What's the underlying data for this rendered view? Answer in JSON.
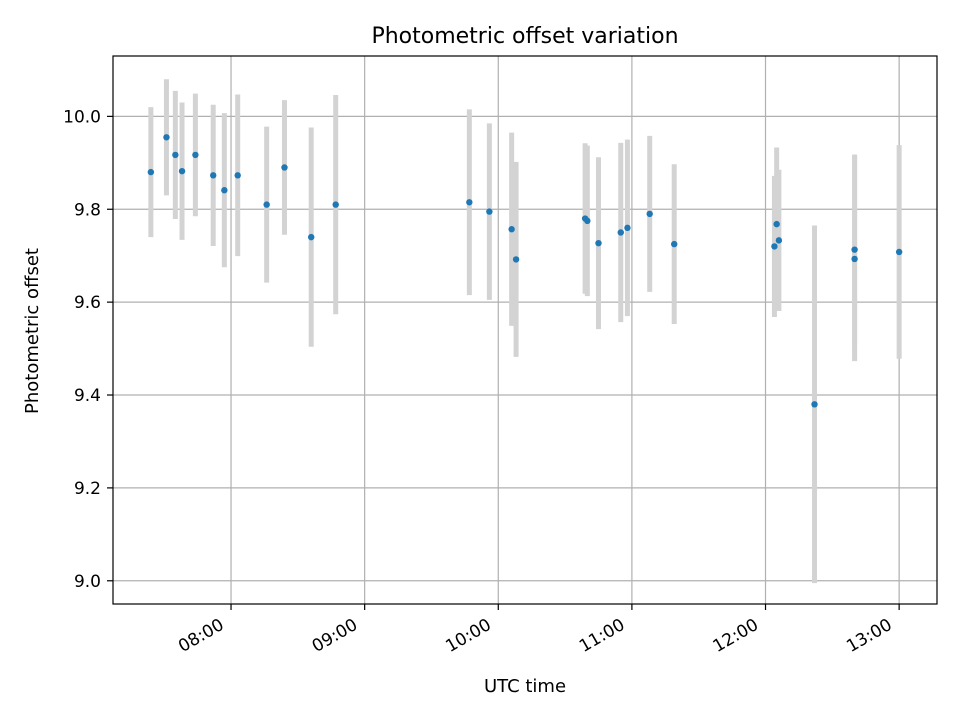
{
  "chart_data": {
    "type": "scatter",
    "title": "Photometric offset variation",
    "xlabel": "UTC time",
    "ylabel": "Photometric offset",
    "x_axis_kind": "time",
    "xlim": [
      "07:07",
      "13:17"
    ],
    "ylim": [
      8.95,
      10.13
    ],
    "x_ticks": [
      "08:00",
      "09:00",
      "10:00",
      "11:00",
      "12:00",
      "13:00"
    ],
    "y_ticks": [
      "9.0",
      "9.2",
      "9.4",
      "9.6",
      "9.8",
      "10.0"
    ],
    "grid": true,
    "colors": {
      "point": "#1f77b4",
      "errorbar": "#d3d3d3",
      "grid": "#b0b0b0"
    },
    "points": [
      {
        "t": "07:24",
        "y": 9.88,
        "err": 0.14
      },
      {
        "t": "07:31",
        "y": 9.955,
        "err": 0.125
      },
      {
        "t": "07:35",
        "y": 9.917,
        "err": 0.138
      },
      {
        "t": "07:38",
        "y": 9.882,
        "err": 0.148
      },
      {
        "t": "07:44",
        "y": 9.917,
        "err": 0.132
      },
      {
        "t": "07:52",
        "y": 9.873,
        "err": 0.152
      },
      {
        "t": "07:57",
        "y": 9.841,
        "err": 0.166
      },
      {
        "t": "08:03",
        "y": 9.873,
        "err": 0.174
      },
      {
        "t": "08:16",
        "y": 9.81,
        "err": 0.168
      },
      {
        "t": "08:24",
        "y": 9.89,
        "err": 0.145
      },
      {
        "t": "08:36",
        "y": 9.74,
        "err": 0.236
      },
      {
        "t": "08:47",
        "y": 9.81,
        "err": 0.236
      },
      {
        "t": "09:47",
        "y": 9.815,
        "err": 0.2
      },
      {
        "t": "09:56",
        "y": 9.795,
        "err": 0.19
      },
      {
        "t": "10:06",
        "y": 9.757,
        "err": 0.208
      },
      {
        "t": "10:08",
        "y": 9.692,
        "err": 0.21
      },
      {
        "t": "10:39",
        "y": 9.78,
        "err": 0.162
      },
      {
        "t": "10:40",
        "y": 9.775,
        "err": 0.162
      },
      {
        "t": "10:45",
        "y": 9.727,
        "err": 0.185
      },
      {
        "t": "10:55",
        "y": 9.75,
        "err": 0.193
      },
      {
        "t": "10:58",
        "y": 9.76,
        "err": 0.19
      },
      {
        "t": "11:08",
        "y": 9.79,
        "err": 0.168
      },
      {
        "t": "11:19",
        "y": 9.725,
        "err": 0.172
      },
      {
        "t": "12:04",
        "y": 9.72,
        "err": 0.152
      },
      {
        "t": "12:05",
        "y": 9.768,
        "err": 0.165
      },
      {
        "t": "12:06",
        "y": 9.733,
        "err": 0.152
      },
      {
        "t": "12:22",
        "y": 9.38,
        "err": 0.385
      },
      {
        "t": "12:40",
        "y": 9.713,
        "err": 0.205
      },
      {
        "t": "12:40",
        "y": 9.693,
        "err": 0.22
      },
      {
        "t": "13:00",
        "y": 9.708,
        "err": 0.23
      }
    ]
  }
}
